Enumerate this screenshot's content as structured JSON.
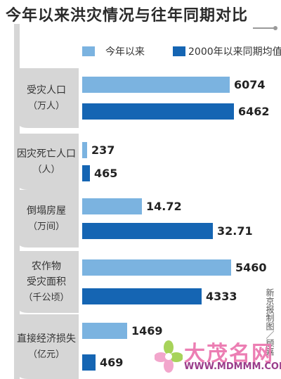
{
  "chart_data": {
    "type": "bar",
    "orientation": "horizontal",
    "title": "今年以来洪灾情况与往年同期对比",
    "legend": [
      "今年以来",
      "2000年以来同期均值"
    ],
    "categories": [
      {
        "label": "受灾人口",
        "unit": "（万人）",
        "values": [
          "6074",
          "6462"
        ]
      },
      {
        "label": "因灾死亡人口",
        "unit": "（人）",
        "values": [
          "237",
          "465"
        ]
      },
      {
        "label": "倒塌房屋",
        "unit": "（万间）",
        "values": [
          "14.72",
          "32.71"
        ]
      },
      {
        "label": "农作物\n受灾面积",
        "unit": "（千公顷）",
        "values": [
          "5460",
          "4333"
        ]
      },
      {
        "label": "直接经济损失",
        "unit": "（亿元）",
        "values": [
          "1469",
          "469"
        ]
      }
    ],
    "colors": {
      "series_light": "#7bb3e0",
      "series_dark": "#1565b3",
      "label_panel": "#d6d6d6"
    }
  },
  "credit": "新京报制图／顾嘉",
  "watermark": {
    "text": "大茂名网",
    "url": "WWW.MDMMM.COM"
  }
}
